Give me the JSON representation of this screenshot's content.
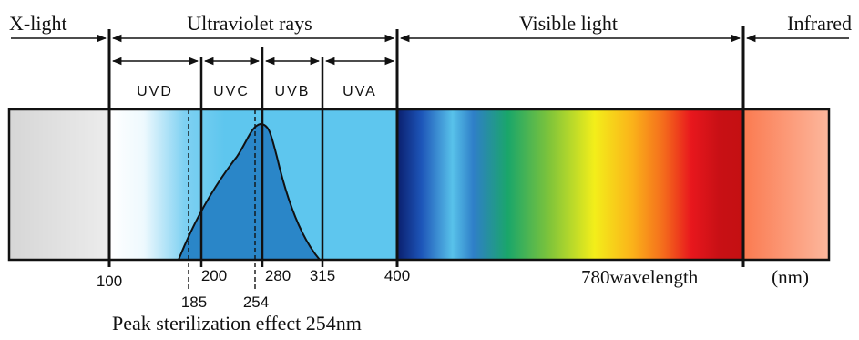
{
  "regions": {
    "x_light": "X-light",
    "ultraviolet": "Ultraviolet rays",
    "visible": "Visible light",
    "infrared": "Infrared"
  },
  "bands": {
    "uvd": "UVD",
    "uvc": "UVC",
    "uvb": "UVB",
    "uva": "UVA"
  },
  "ticks": {
    "t100": "100",
    "t200": "200",
    "t280": "280",
    "t315": "315",
    "t400": "400",
    "t185": "185",
    "t254": "254",
    "t780": "780wavelength",
    "unit": "(nm)"
  },
  "caption": "Peak sterilization effect 254nm",
  "colors": {
    "x_ray_band": "#dcdcdc",
    "uv_band": "#5ec6ee",
    "curve_fill": "#2a86c8",
    "infrared_band": "#fb8a60",
    "line": "#111111"
  }
}
